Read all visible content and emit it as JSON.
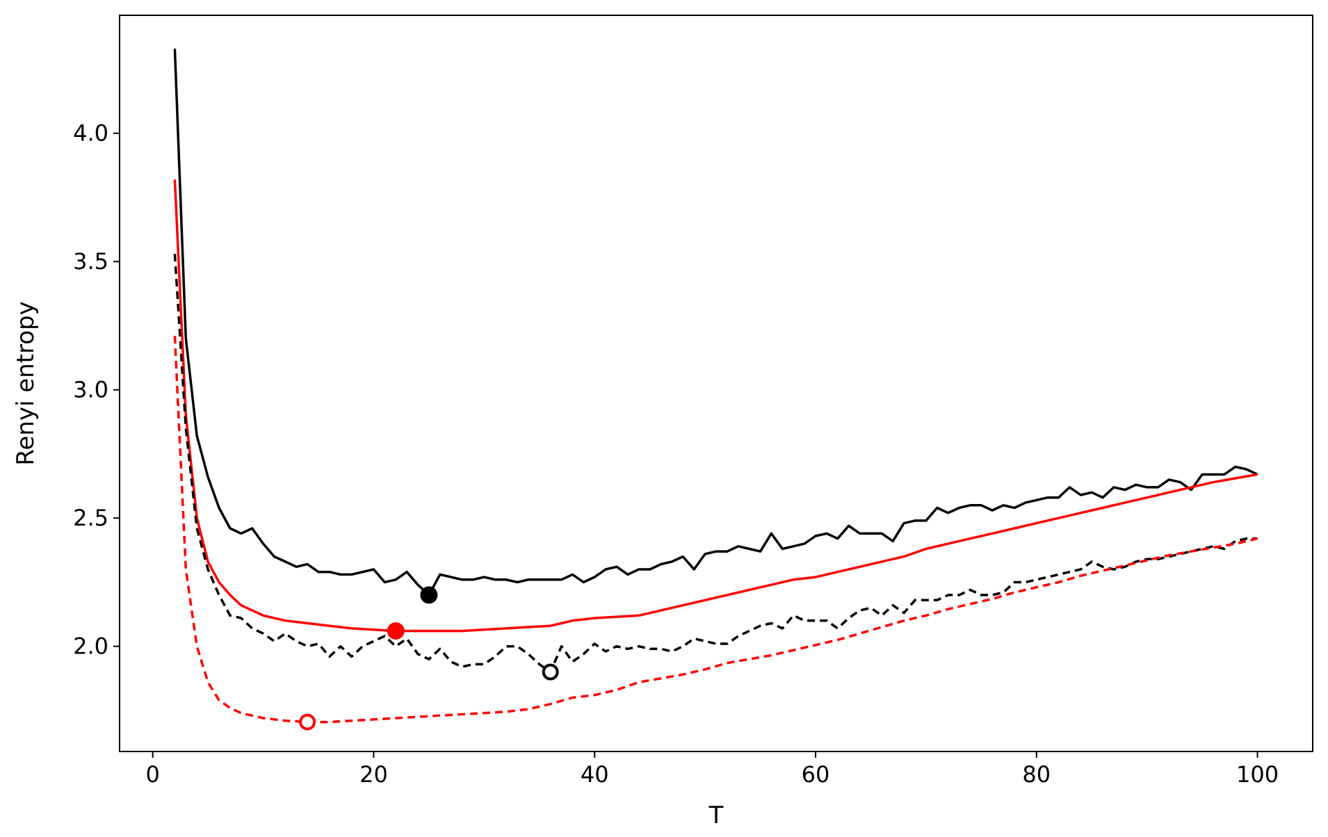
{
  "chart_data": {
    "type": "line",
    "title": "",
    "xlabel": "T",
    "ylabel": "Renyi entropy",
    "xlim": [
      -3,
      105
    ],
    "ylim": [
      1.59,
      4.46
    ],
    "xticks": [
      0,
      20,
      40,
      60,
      80,
      100
    ],
    "yticks": [
      2.0,
      2.5,
      3.0,
      3.5,
      4.0
    ],
    "xtick_labels": [
      "0",
      "20",
      "40",
      "60",
      "80",
      "100"
    ],
    "ytick_labels": [
      "2.0",
      "2.5",
      "3.0",
      "3.5",
      "4.0"
    ],
    "grid": false,
    "legend": "none",
    "series": [
      {
        "color": "#000000",
        "style": "solid",
        "points": [
          [
            2,
            4.33
          ],
          [
            3,
            3.2
          ],
          [
            4,
            2.82
          ],
          [
            5,
            2.66
          ],
          [
            6,
            2.54
          ],
          [
            7,
            2.46
          ],
          [
            8,
            2.44
          ],
          [
            9,
            2.46
          ],
          [
            10,
            2.4
          ],
          [
            11,
            2.35
          ],
          [
            12,
            2.33
          ],
          [
            13,
            2.31
          ],
          [
            14,
            2.32
          ],
          [
            15,
            2.29
          ],
          [
            16,
            2.29
          ],
          [
            17,
            2.28
          ],
          [
            18,
            2.28
          ],
          [
            19,
            2.29
          ],
          [
            20,
            2.3
          ],
          [
            21,
            2.25
          ],
          [
            22,
            2.26
          ],
          [
            23,
            2.29
          ],
          [
            24,
            2.24
          ],
          [
            25,
            2.2
          ],
          [
            26,
            2.28
          ],
          [
            27,
            2.27
          ],
          [
            28,
            2.26
          ],
          [
            29,
            2.26
          ],
          [
            30,
            2.27
          ],
          [
            31,
            2.26
          ],
          [
            32,
            2.26
          ],
          [
            33,
            2.25
          ],
          [
            34,
            2.26
          ],
          [
            35,
            2.26
          ],
          [
            36,
            2.26
          ],
          [
            37,
            2.26
          ],
          [
            38,
            2.28
          ],
          [
            39,
            2.25
          ],
          [
            40,
            2.27
          ],
          [
            41,
            2.3
          ],
          [
            42,
            2.31
          ],
          [
            43,
            2.28
          ],
          [
            44,
            2.3
          ],
          [
            45,
            2.3
          ],
          [
            46,
            2.32
          ],
          [
            47,
            2.33
          ],
          [
            48,
            2.35
          ],
          [
            49,
            2.3
          ],
          [
            50,
            2.36
          ],
          [
            51,
            2.37
          ],
          [
            52,
            2.37
          ],
          [
            53,
            2.39
          ],
          [
            54,
            2.38
          ],
          [
            55,
            2.37
          ],
          [
            56,
            2.44
          ],
          [
            57,
            2.38
          ],
          [
            58,
            2.39
          ],
          [
            59,
            2.4
          ],
          [
            60,
            2.43
          ],
          [
            61,
            2.44
          ],
          [
            62,
            2.42
          ],
          [
            63,
            2.47
          ],
          [
            64,
            2.44
          ],
          [
            65,
            2.44
          ],
          [
            66,
            2.44
          ],
          [
            67,
            2.41
          ],
          [
            68,
            2.48
          ],
          [
            69,
            2.49
          ],
          [
            70,
            2.49
          ],
          [
            71,
            2.54
          ],
          [
            72,
            2.52
          ],
          [
            73,
            2.54
          ],
          [
            74,
            2.55
          ],
          [
            75,
            2.55
          ],
          [
            76,
            2.53
          ],
          [
            77,
            2.55
          ],
          [
            78,
            2.54
          ],
          [
            79,
            2.56
          ],
          [
            80,
            2.57
          ],
          [
            81,
            2.58
          ],
          [
            82,
            2.58
          ],
          [
            83,
            2.62
          ],
          [
            84,
            2.59
          ],
          [
            85,
            2.6
          ],
          [
            86,
            2.58
          ],
          [
            87,
            2.62
          ],
          [
            88,
            2.61
          ],
          [
            89,
            2.63
          ],
          [
            90,
            2.62
          ],
          [
            91,
            2.62
          ],
          [
            92,
            2.65
          ],
          [
            93,
            2.64
          ],
          [
            94,
            2.61
          ],
          [
            95,
            2.67
          ],
          [
            96,
            2.67
          ],
          [
            97,
            2.67
          ],
          [
            98,
            2.7
          ],
          [
            99,
            2.69
          ],
          [
            100,
            2.67
          ]
        ]
      },
      {
        "color": "#ff0000",
        "style": "solid",
        "points": [
          [
            2,
            3.82
          ],
          [
            3,
            2.9
          ],
          [
            4,
            2.5
          ],
          [
            5,
            2.33
          ],
          [
            6,
            2.25
          ],
          [
            7,
            2.2
          ],
          [
            8,
            2.16
          ],
          [
            9,
            2.14
          ],
          [
            10,
            2.12
          ],
          [
            12,
            2.1
          ],
          [
            14,
            2.09
          ],
          [
            16,
            2.08
          ],
          [
            18,
            2.07
          ],
          [
            20,
            2.065
          ],
          [
            22,
            2.06
          ],
          [
            24,
            2.06
          ],
          [
            26,
            2.06
          ],
          [
            28,
            2.06
          ],
          [
            30,
            2.065
          ],
          [
            32,
            2.07
          ],
          [
            34,
            2.075
          ],
          [
            36,
            2.08
          ],
          [
            37,
            2.09
          ],
          [
            38,
            2.1
          ],
          [
            40,
            2.11
          ],
          [
            42,
            2.115
          ],
          [
            44,
            2.12
          ],
          [
            46,
            2.14
          ],
          [
            48,
            2.16
          ],
          [
            50,
            2.18
          ],
          [
            52,
            2.2
          ],
          [
            54,
            2.22
          ],
          [
            56,
            2.24
          ],
          [
            58,
            2.26
          ],
          [
            60,
            2.27
          ],
          [
            62,
            2.29
          ],
          [
            64,
            2.31
          ],
          [
            66,
            2.33
          ],
          [
            68,
            2.35
          ],
          [
            70,
            2.38
          ],
          [
            72,
            2.4
          ],
          [
            74,
            2.42
          ],
          [
            76,
            2.44
          ],
          [
            78,
            2.46
          ],
          [
            80,
            2.48
          ],
          [
            82,
            2.5
          ],
          [
            84,
            2.52
          ],
          [
            86,
            2.54
          ],
          [
            88,
            2.56
          ],
          [
            90,
            2.58
          ],
          [
            92,
            2.6
          ],
          [
            94,
            2.62
          ],
          [
            96,
            2.64
          ],
          [
            98,
            2.655
          ],
          [
            100,
            2.67
          ]
        ]
      },
      {
        "color": "#000000",
        "style": "dashed",
        "points": [
          [
            2,
            3.53
          ],
          [
            3,
            2.85
          ],
          [
            4,
            2.46
          ],
          [
            5,
            2.3
          ],
          [
            6,
            2.2
          ],
          [
            7,
            2.12
          ],
          [
            8,
            2.11
          ],
          [
            9,
            2.07
          ],
          [
            10,
            2.05
          ],
          [
            11,
            2.02
          ],
          [
            12,
            2.05
          ],
          [
            13,
            2.02
          ],
          [
            14,
            2.0
          ],
          [
            15,
            2.01
          ],
          [
            16,
            1.96
          ],
          [
            17,
            2.0
          ],
          [
            18,
            1.96
          ],
          [
            19,
            2.0
          ],
          [
            20,
            2.02
          ],
          [
            21,
            2.04
          ],
          [
            22,
            2.0
          ],
          [
            23,
            2.03
          ],
          [
            24,
            1.97
          ],
          [
            25,
            1.95
          ],
          [
            26,
            1.99
          ],
          [
            27,
            1.94
          ],
          [
            28,
            1.92
          ],
          [
            29,
            1.93
          ],
          [
            30,
            1.93
          ],
          [
            31,
            1.96
          ],
          [
            32,
            2.0
          ],
          [
            33,
            2.0
          ],
          [
            34,
            1.97
          ],
          [
            35,
            1.93
          ],
          [
            36,
            1.9
          ],
          [
            37,
            2.0
          ],
          [
            38,
            1.94
          ],
          [
            39,
            1.97
          ],
          [
            40,
            2.01
          ],
          [
            41,
            1.98
          ],
          [
            42,
            2.0
          ],
          [
            43,
            1.99
          ],
          [
            44,
            2.0
          ],
          [
            45,
            1.99
          ],
          [
            46,
            1.99
          ],
          [
            47,
            1.98
          ],
          [
            48,
            2.0
          ],
          [
            49,
            2.03
          ],
          [
            50,
            2.02
          ],
          [
            51,
            2.01
          ],
          [
            52,
            2.01
          ],
          [
            53,
            2.04
          ],
          [
            54,
            2.06
          ],
          [
            55,
            2.08
          ],
          [
            56,
            2.09
          ],
          [
            57,
            2.07
          ],
          [
            58,
            2.12
          ],
          [
            59,
            2.1
          ],
          [
            60,
            2.1
          ],
          [
            61,
            2.1
          ],
          [
            62,
            2.07
          ],
          [
            63,
            2.11
          ],
          [
            64,
            2.14
          ],
          [
            65,
            2.15
          ],
          [
            66,
            2.12
          ],
          [
            67,
            2.16
          ],
          [
            68,
            2.13
          ],
          [
            69,
            2.18
          ],
          [
            70,
            2.18
          ],
          [
            71,
            2.18
          ],
          [
            72,
            2.2
          ],
          [
            73,
            2.2
          ],
          [
            74,
            2.22
          ],
          [
            75,
            2.2
          ],
          [
            76,
            2.2
          ],
          [
            77,
            2.21
          ],
          [
            78,
            2.25
          ],
          [
            79,
            2.25
          ],
          [
            80,
            2.26
          ],
          [
            81,
            2.27
          ],
          [
            82,
            2.28
          ],
          [
            83,
            2.29
          ],
          [
            84,
            2.3
          ],
          [
            85,
            2.33
          ],
          [
            86,
            2.31
          ],
          [
            87,
            2.3
          ],
          [
            88,
            2.31
          ],
          [
            89,
            2.33
          ],
          [
            90,
            2.34
          ],
          [
            91,
            2.34
          ],
          [
            92,
            2.35
          ],
          [
            93,
            2.36
          ],
          [
            94,
            2.37
          ],
          [
            95,
            2.38
          ],
          [
            96,
            2.39
          ],
          [
            97,
            2.38
          ],
          [
            98,
            2.41
          ],
          [
            99,
            2.42
          ],
          [
            100,
            2.42
          ]
        ]
      },
      {
        "color": "#ff0000",
        "style": "dashed",
        "points": [
          [
            2,
            3.21
          ],
          [
            3,
            2.3
          ],
          [
            4,
            2.0
          ],
          [
            5,
            1.86
          ],
          [
            6,
            1.79
          ],
          [
            7,
            1.76
          ],
          [
            8,
            1.74
          ],
          [
            9,
            1.73
          ],
          [
            10,
            1.72
          ],
          [
            12,
            1.71
          ],
          [
            14,
            1.705
          ],
          [
            16,
            1.705
          ],
          [
            18,
            1.71
          ],
          [
            20,
            1.715
          ],
          [
            22,
            1.72
          ],
          [
            24,
            1.725
          ],
          [
            26,
            1.73
          ],
          [
            28,
            1.735
          ],
          [
            30,
            1.74
          ],
          [
            32,
            1.745
          ],
          [
            34,
            1.755
          ],
          [
            36,
            1.775
          ],
          [
            38,
            1.8
          ],
          [
            40,
            1.81
          ],
          [
            42,
            1.83
          ],
          [
            44,
            1.86
          ],
          [
            46,
            1.875
          ],
          [
            48,
            1.89
          ],
          [
            50,
            1.91
          ],
          [
            52,
            1.935
          ],
          [
            54,
            1.95
          ],
          [
            56,
            1.965
          ],
          [
            58,
            1.985
          ],
          [
            60,
            2.005
          ],
          [
            62,
            2.025
          ],
          [
            64,
            2.05
          ],
          [
            66,
            2.075
          ],
          [
            68,
            2.1
          ],
          [
            70,
            2.12
          ],
          [
            72,
            2.145
          ],
          [
            74,
            2.165
          ],
          [
            76,
            2.185
          ],
          [
            78,
            2.21
          ],
          [
            80,
            2.23
          ],
          [
            82,
            2.25
          ],
          [
            84,
            2.275
          ],
          [
            86,
            2.295
          ],
          [
            88,
            2.315
          ],
          [
            90,
            2.335
          ],
          [
            92,
            2.355
          ],
          [
            94,
            2.37
          ],
          [
            96,
            2.385
          ],
          [
            98,
            2.4
          ],
          [
            100,
            2.42
          ]
        ]
      }
    ],
    "markers": [
      {
        "x": 25,
        "y": 2.2,
        "color": "#000000",
        "filled": true
      },
      {
        "x": 22,
        "y": 2.06,
        "color": "#ff0000",
        "filled": true
      },
      {
        "x": 36,
        "y": 1.9,
        "color": "#000000",
        "filled": false
      },
      {
        "x": 14,
        "y": 1.705,
        "color": "#ff0000",
        "filled": false
      }
    ]
  }
}
